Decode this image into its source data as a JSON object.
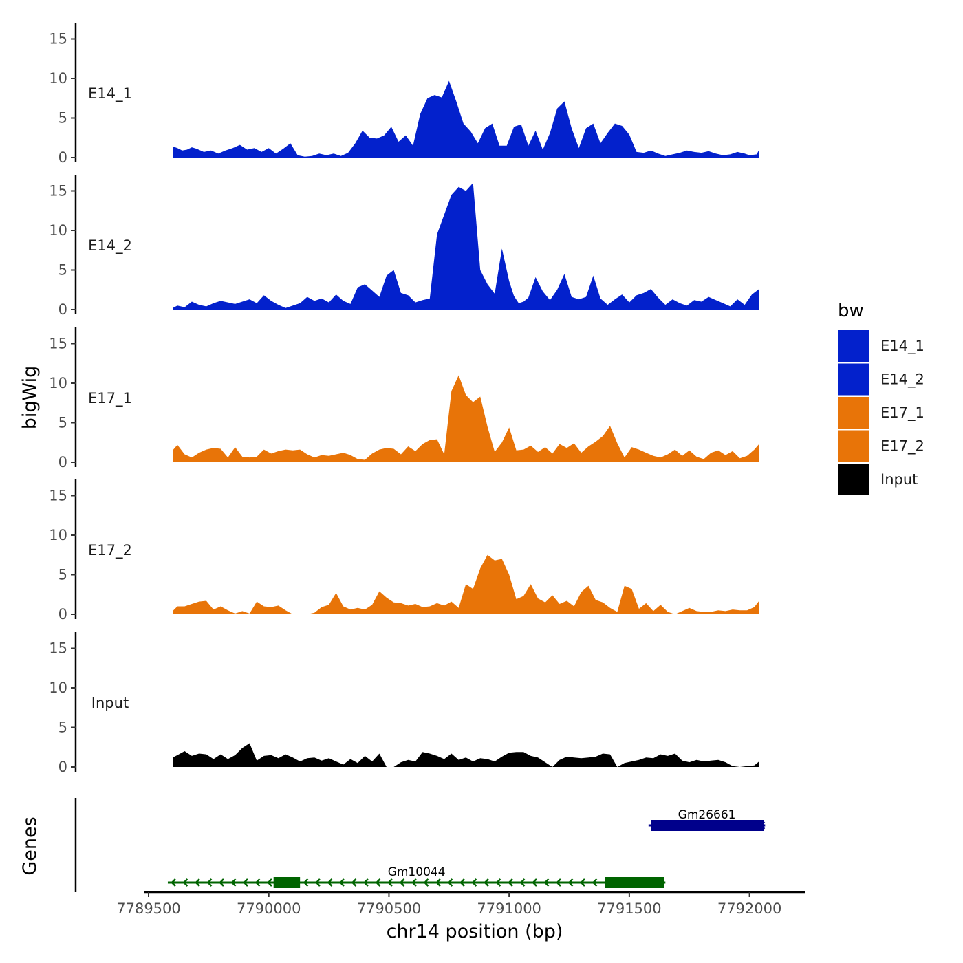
{
  "chart_data": {
    "type": "area",
    "chromosome": "chr14",
    "xlabel": "chr14 position (bp)",
    "ylabel": "bigWig",
    "genes_label": "Genes",
    "xlim": [
      7789520,
      7792170
    ],
    "x_ticks": [
      7789500,
      7790000,
      7790500,
      7791000,
      7791500,
      7792000
    ],
    "x_tick_labels": [
      "7789500",
      "7790000",
      "7790500",
      "7791000",
      "7791500",
      "7792000"
    ],
    "ylim": [
      0,
      16
    ],
    "y_ticks": [
      0,
      5,
      10,
      15
    ],
    "y_tick_labels": [
      "0",
      "5",
      "10",
      "15"
    ],
    "legend": {
      "title": "bw",
      "items": [
        {
          "label": "E14_1",
          "color": "#0321cc"
        },
        {
          "label": "E14_2",
          "color": "#0321cc"
        },
        {
          "label": "E17_1",
          "color": "#e87408"
        },
        {
          "label": "E17_2",
          "color": "#e87408"
        },
        {
          "label": "Input",
          "color": "#000000"
        }
      ]
    },
    "tracks": [
      {
        "name": "E14_1",
        "color": "#0321cc",
        "x": [
          7789600,
          7789620,
          7789640,
          7789660,
          7789680,
          7789700,
          7789730,
          7789760,
          7789790,
          7789820,
          7789850,
          7789880,
          7789910,
          7789940,
          7789970,
          7790000,
          7790030,
          7790060,
          7790090,
          7790120,
          7790150,
          7790180,
          7790210,
          7790240,
          7790270,
          7790300,
          7790330,
          7790360,
          7790390,
          7790420,
          7790450,
          7790480,
          7790510,
          7790540,
          7790570,
          7790600,
          7790630,
          7790660,
          7790690,
          7790720,
          7790750,
          7790780,
          7790810,
          7790840,
          7790870,
          7790900,
          7790930,
          7790960,
          7790990,
          7791020,
          7791050,
          7791080,
          7791110,
          7791140,
          7791170,
          7791200,
          7791230,
          7791260,
          7791290,
          7791320,
          7791350,
          7791380,
          7791410,
          7791440,
          7791470,
          7791500,
          7791530,
          7791560,
          7791590,
          7791620,
          7791650,
          7791680,
          7791710,
          7791740,
          7791770,
          7791800,
          7791830,
          7791860,
          7791890,
          7791920,
          7791950,
          7791980,
          7792000,
          7792030,
          7792040
        ],
        "y": [
          1.4,
          1.2,
          0.9,
          1.0,
          1.3,
          1.1,
          0.7,
          0.9,
          0.5,
          0.9,
          1.2,
          1.6,
          1.0,
          1.2,
          0.7,
          1.2,
          0.5,
          1.1,
          1.8,
          0.3,
          0.1,
          0.2,
          0.5,
          0.3,
          0.5,
          0.2,
          0.6,
          1.8,
          3.4,
          2.5,
          2.4,
          2.8,
          3.9,
          2.0,
          2.8,
          1.5,
          5.5,
          7.5,
          7.9,
          7.6,
          9.7,
          7.1,
          4.3,
          3.3,
          1.8,
          3.7,
          4.3,
          1.5,
          1.5,
          3.9,
          4.2,
          1.5,
          3.4,
          1.0,
          3.1,
          6.2,
          7.1,
          3.7,
          1.2,
          3.7,
          4.3,
          1.8,
          3.1,
          4.3,
          4.0,
          2.9,
          0.7,
          0.6,
          0.9,
          0.5,
          0.2,
          0.4,
          0.6,
          0.9,
          0.7,
          0.6,
          0.8,
          0.5,
          0.3,
          0.4,
          0.7,
          0.5,
          0.3,
          0.4,
          1.0
        ]
      },
      {
        "name": "E14_2",
        "color": "#0321cc",
        "x": [
          7789600,
          7789620,
          7789650,
          7789680,
          7789710,
          7789740,
          7789770,
          7789800,
          7789830,
          7789860,
          7789890,
          7789920,
          7789950,
          7789980,
          7790010,
          7790040,
          7790070,
          7790100,
          7790130,
          7790160,
          7790190,
          7790220,
          7790250,
          7790280,
          7790310,
          7790340,
          7790370,
          7790400,
          7790430,
          7790460,
          7790490,
          7790520,
          7790550,
          7790580,
          7790610,
          7790640,
          7790670,
          7790700,
          7790730,
          7790760,
          7790790,
          7790820,
          7790850,
          7790880,
          7790910,
          7790940,
          7790970,
          7791000,
          7791020,
          7791040,
          7791060,
          7791080,
          7791110,
          7791140,
          7791170,
          7791200,
          7791230,
          7791260,
          7791290,
          7791320,
          7791350,
          7791380,
          7791410,
          7791440,
          7791470,
          7791500,
          7791530,
          7791560,
          7791590,
          7791620,
          7791650,
          7791680,
          7791710,
          7791740,
          7791770,
          7791800,
          7791830,
          7791860,
          7791890,
          7791920,
          7791950,
          7791980,
          7792010,
          7792040
        ],
        "y": [
          0.2,
          0.5,
          0.3,
          1.0,
          0.6,
          0.4,
          0.8,
          1.1,
          0.9,
          0.7,
          1.0,
          1.3,
          0.8,
          1.8,
          1.1,
          0.6,
          0.2,
          0.5,
          0.8,
          1.6,
          1.1,
          1.4,
          0.9,
          1.9,
          1.1,
          0.7,
          2.8,
          3.2,
          2.4,
          1.6,
          4.3,
          5.0,
          2.1,
          1.8,
          0.9,
          1.2,
          1.4,
          9.5,
          12.0,
          14.5,
          15.5,
          15.0,
          16.0,
          5.0,
          3.2,
          2.0,
          7.7,
          3.6,
          1.7,
          0.8,
          1.0,
          1.5,
          4.1,
          2.3,
          1.2,
          2.5,
          4.5,
          1.6,
          1.3,
          1.6,
          4.3,
          1.4,
          0.6,
          1.3,
          1.9,
          0.9,
          1.8,
          2.1,
          2.6,
          1.5,
          0.6,
          1.3,
          0.8,
          0.5,
          1.2,
          1.0,
          1.6,
          1.2,
          0.8,
          0.4,
          1.3,
          0.6,
          1.9,
          2.6
        ]
      },
      {
        "name": "E17_1",
        "color": "#e87408",
        "x": [
          7789600,
          7789620,
          7789650,
          7789680,
          7789710,
          7789740,
          7789770,
          7789800,
          7789830,
          7789860,
          7789890,
          7789920,
          7789950,
          7789980,
          7790010,
          7790040,
          7790070,
          7790100,
          7790130,
          7790160,
          7790190,
          7790220,
          7790250,
          7790280,
          7790310,
          7790340,
          7790370,
          7790400,
          7790430,
          7790460,
          7790490,
          7790520,
          7790550,
          7790580,
          7790610,
          7790640,
          7790670,
          7790700,
          7790730,
          7790760,
          7790790,
          7790820,
          7790850,
          7790880,
          7790910,
          7790940,
          7790970,
          7791000,
          7791030,
          7791060,
          7791090,
          7791120,
          7791150,
          7791180,
          7791210,
          7791240,
          7791270,
          7791300,
          7791330,
          7791360,
          7791390,
          7791420,
          7791450,
          7791480,
          7791510,
          7791540,
          7791570,
          7791600,
          7791630,
          7791660,
          7791690,
          7791720,
          7791750,
          7791780,
          7791810,
          7791840,
          7791870,
          7791900,
          7791930,
          7791960,
          7791990,
          7792020,
          7792040
        ],
        "y": [
          1.5,
          2.2,
          1.0,
          0.6,
          1.2,
          1.6,
          1.8,
          1.7,
          0.6,
          1.9,
          0.7,
          0.6,
          0.7,
          1.6,
          1.1,
          1.4,
          1.6,
          1.5,
          1.6,
          1.0,
          0.6,
          0.9,
          0.8,
          1.0,
          1.2,
          0.9,
          0.4,
          0.3,
          1.1,
          1.6,
          1.8,
          1.7,
          1.0,
          2.0,
          1.4,
          2.3,
          2.8,
          2.9,
          1.0,
          9.0,
          11.0,
          8.5,
          7.6,
          8.3,
          4.5,
          1.3,
          2.5,
          4.4,
          1.5,
          1.6,
          2.1,
          1.3,
          1.9,
          1.1,
          2.3,
          1.8,
          2.4,
          1.2,
          2.0,
          2.6,
          3.3,
          4.6,
          2.4,
          0.6,
          1.9,
          1.6,
          1.2,
          0.8,
          0.6,
          1.0,
          1.6,
          0.8,
          1.5,
          0.7,
          0.4,
          1.2,
          1.5,
          0.9,
          1.4,
          0.5,
          0.8,
          1.6,
          2.3
        ]
      },
      {
        "name": "E17_2",
        "color": "#e87408",
        "x": [
          7789600,
          7789620,
          7789650,
          7789680,
          7789710,
          7789740,
          7789770,
          7789800,
          7789830,
          7789860,
          7789890,
          7789920,
          7789950,
          7789980,
          7790010,
          7790040,
          7790070,
          7790100,
          7790130,
          7790160,
          7790190,
          7790220,
          7790250,
          7790280,
          7790310,
          7790340,
          7790370,
          7790400,
          7790430,
          7790460,
          7790490,
          7790520,
          7790550,
          7790580,
          7790610,
          7790640,
          7790670,
          7790700,
          7790730,
          7790760,
          7790790,
          7790820,
          7790850,
          7790880,
          7790910,
          7790940,
          7790970,
          7791000,
          7791030,
          7791060,
          7791090,
          7791120,
          7791150,
          7791180,
          7791210,
          7791240,
          7791270,
          7791300,
          7791330,
          7791360,
          7791390,
          7791420,
          7791450,
          7791480,
          7791510,
          7791540,
          7791570,
          7791600,
          7791630,
          7791660,
          7791690,
          7791720,
          7791750,
          7791780,
          7791810,
          7791840,
          7791870,
          7791900,
          7791930,
          7791960,
          7791990,
          7792020,
          7792040
        ],
        "y": [
          0.4,
          1.0,
          1.0,
          1.3,
          1.6,
          1.7,
          0.6,
          1.0,
          0.5,
          0.1,
          0.4,
          0.1,
          1.6,
          1.0,
          0.9,
          1.1,
          0.5,
          0.0,
          0.0,
          0.0,
          0.2,
          0.9,
          1.2,
          2.7,
          1.0,
          0.6,
          0.8,
          0.6,
          1.2,
          2.9,
          2.1,
          1.5,
          1.4,
          1.1,
          1.3,
          0.9,
          1.0,
          1.4,
          1.1,
          1.6,
          0.8,
          3.8,
          3.2,
          5.8,
          7.5,
          6.8,
          7.0,
          5.0,
          1.9,
          2.3,
          3.8,
          2.0,
          1.5,
          2.4,
          1.3,
          1.7,
          1.0,
          2.8,
          3.6,
          1.8,
          1.5,
          0.8,
          0.3,
          3.6,
          3.2,
          0.7,
          1.4,
          0.4,
          1.2,
          0.3,
          0.0,
          0.4,
          0.8,
          0.4,
          0.3,
          0.3,
          0.5,
          0.4,
          0.6,
          0.5,
          0.5,
          0.9,
          1.7
        ]
      },
      {
        "name": "Input",
        "color": "#000000",
        "x": [
          7789600,
          7789620,
          7789650,
          7789680,
          7789710,
          7789740,
          7789770,
          7789800,
          7789830,
          7789860,
          7789890,
          7789920,
          7789950,
          7789980,
          7790010,
          7790040,
          7790070,
          7790100,
          7790130,
          7790160,
          7790190,
          7790220,
          7790250,
          7790280,
          7790310,
          7790340,
          7790370,
          7790400,
          7790430,
          7790460,
          7790490,
          7790520,
          7790550,
          7790580,
          7790610,
          7790640,
          7790670,
          7790700,
          7790730,
          7790760,
          7790790,
          7790820,
          7790850,
          7790880,
          7790910,
          7790940,
          7790970,
          7791000,
          7791030,
          7791060,
          7791090,
          7791120,
          7791150,
          7791180,
          7791210,
          7791240,
          7791270,
          7791300,
          7791330,
          7791360,
          7791390,
          7791420,
          7791450,
          7791480,
          7791510,
          7791540,
          7791570,
          7791600,
          7791630,
          7791660,
          7791690,
          7791720,
          7791750,
          7791780,
          7791810,
          7791840,
          7791870,
          7791900,
          7791930,
          7791960,
          7791990,
          7792020,
          7792040
        ],
        "y": [
          1.2,
          1.5,
          2.0,
          1.4,
          1.7,
          1.6,
          1.0,
          1.6,
          1.0,
          1.5,
          2.4,
          3.0,
          0.8,
          1.4,
          1.5,
          1.1,
          1.6,
          1.2,
          0.7,
          1.1,
          1.2,
          0.8,
          1.1,
          0.7,
          0.3,
          1.0,
          0.5,
          1.4,
          0.7,
          1.7,
          0.0,
          0.0,
          0.6,
          0.9,
          0.7,
          1.9,
          1.7,
          1.4,
          1.0,
          1.7,
          0.9,
          1.2,
          0.7,
          1.1,
          1.0,
          0.7,
          1.3,
          1.8,
          1.9,
          1.9,
          1.4,
          1.2,
          0.6,
          0.0,
          0.9,
          1.3,
          1.2,
          1.1,
          1.2,
          1.3,
          1.7,
          1.6,
          0.0,
          0.5,
          0.7,
          0.9,
          1.2,
          1.1,
          1.6,
          1.4,
          1.7,
          0.8,
          0.6,
          0.9,
          0.7,
          0.8,
          0.9,
          0.6,
          0.1,
          0.0,
          0.1,
          0.2,
          0.7
        ]
      }
    ],
    "genes": [
      {
        "name": "Gm26661",
        "strand": "-",
        "color": "#00008b",
        "row": 1,
        "start": 7791580,
        "end": 7792065,
        "exons": [
          [
            7791590,
            7792060
          ]
        ]
      },
      {
        "name": "Gm10044",
        "strand": "-",
        "color": "#006400",
        "row": 2,
        "start": 7789580,
        "end": 7791650,
        "exons": [
          [
            7790020,
            7790130
          ],
          [
            7791400,
            7791645
          ]
        ]
      }
    ]
  }
}
